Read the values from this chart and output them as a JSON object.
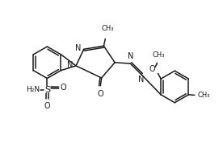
{
  "bg_color": "#ffffff",
  "line_color": "#1a1a1a",
  "line_width": 1.1,
  "font_size": 6.5,
  "figsize": [
    2.76,
    1.83
  ],
  "dpi": 100,
  "xlim": [
    0,
    10
  ],
  "ylim": [
    0,
    6.6
  ]
}
